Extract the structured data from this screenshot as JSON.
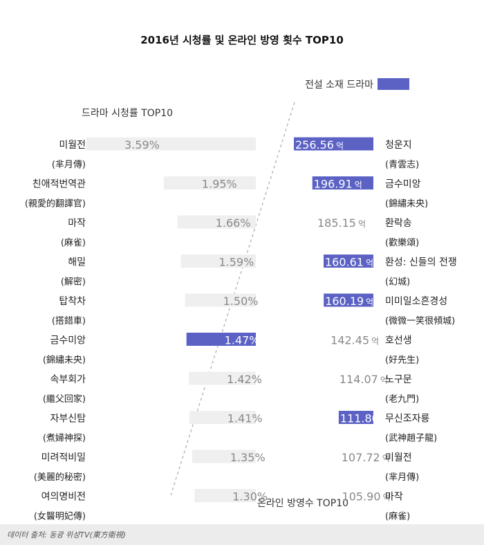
{
  "chart_data": {
    "type": "bar",
    "title": "2016년 시청률 및 온라인 방영 횟수 TOP10",
    "legend": {
      "label": "전설 소재 드라마",
      "color": "#5b62c4"
    },
    "left_panel": {
      "label": "드라마 시청률 TOP10",
      "unit": "%",
      "items": [
        {
          "name": "미월전",
          "hanja": "(芈月傳)",
          "value": 3.59,
          "label": "3.59%",
          "highlight": false
        },
        {
          "name": "친애적번역관",
          "hanja": "(親愛的翻譯官)",
          "value": 1.95,
          "label": "1.95%",
          "highlight": false
        },
        {
          "name": "마작",
          "hanja": "(麻雀)",
          "value": 1.66,
          "label": "1.66%",
          "highlight": false
        },
        {
          "name": "해밀",
          "hanja": "(解密)",
          "value": 1.59,
          "label": "1.59%",
          "highlight": false
        },
        {
          "name": "탑착차",
          "hanja": "(搭錯車)",
          "value": 1.5,
          "label": "1.50%",
          "highlight": false
        },
        {
          "name": "금수미앙",
          "hanja": "(錦繡未央)",
          "value": 1.47,
          "label": "1.47%",
          "highlight": true
        },
        {
          "name": "속부회가",
          "hanja": "(繼父回家)",
          "value": 1.42,
          "label": "1.42%",
          "highlight": false
        },
        {
          "name": "자부신탐",
          "hanja": "(煮婦神探)",
          "value": 1.41,
          "label": "1.41%",
          "highlight": false
        },
        {
          "name": "미려적비밀",
          "hanja": "(美麗的秘密)",
          "value": 1.35,
          "label": "1.35%",
          "highlight": false
        },
        {
          "name": "여의명비전",
          "hanja": "(女醫明妃傳)",
          "value": 1.3,
          "label": "1.30%",
          "highlight": false
        }
      ]
    },
    "right_panel": {
      "label": "온라인 방영수 TOP10",
      "unit": "억",
      "items": [
        {
          "name": "청운지",
          "hanja": "(青雲志)",
          "value": 256.56,
          "label": "256.56",
          "highlight": true
        },
        {
          "name": "금수미앙",
          "hanja": "(錦繡未央)",
          "value": 196.91,
          "label": "196.91",
          "highlight": true
        },
        {
          "name": "환락송",
          "hanja": "(歡樂頌)",
          "value": 185.15,
          "label": "185.15",
          "highlight": false
        },
        {
          "name": "환성: 신들의 전쟁",
          "hanja": "(幻城)",
          "value": 160.61,
          "label": "160.61",
          "highlight": true
        },
        {
          "name": "미미일소흔경성",
          "hanja": "(微微一笑很傾城)",
          "value": 160.19,
          "label": "160.19",
          "highlight": true
        },
        {
          "name": "호선생",
          "hanja": "(好先生)",
          "value": 142.45,
          "label": "142.45",
          "highlight": false
        },
        {
          "name": "노구문",
          "hanja": "(老九門)",
          "value": 114.07,
          "label": "114.07",
          "highlight": false
        },
        {
          "name": "무신조자룡",
          "hanja": "(武神趙子龍)",
          "value": 111.8,
          "label": "111.80",
          "highlight": true
        },
        {
          "name": "미월전",
          "hanja": "(芈月傳)",
          "value": 107.72,
          "label": "107.72",
          "highlight": false
        },
        {
          "name": "마작",
          "hanja": "(麻雀)",
          "value": 105.9,
          "label": "105.90",
          "highlight": false
        }
      ]
    },
    "colors": {
      "highlight": "#5b62c4",
      "bar": "#efefef",
      "divider": "#b0b0b0"
    }
  },
  "source": "데이터 출처: 동광 위성TV(東方衛視)"
}
